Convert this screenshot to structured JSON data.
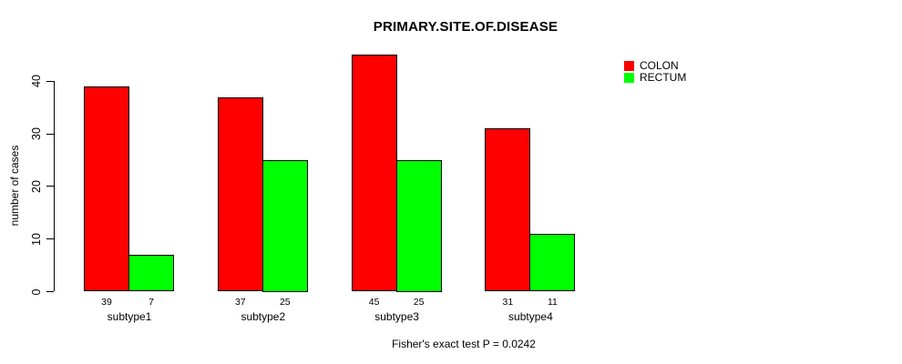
{
  "chart_data": {
    "type": "bar",
    "title": "PRIMARY.SITE.OF.DISEASE",
    "categories": [
      "subtype1",
      "subtype2",
      "subtype3",
      "subtype4"
    ],
    "series": [
      {
        "name": "COLON",
        "color": "#ff0000",
        "values": [
          39,
          37,
          45,
          31
        ]
      },
      {
        "name": "RECTUM",
        "color": "#00ff00",
        "values": [
          7,
          25,
          25,
          11
        ]
      }
    ],
    "bar_value_labels": [
      [
        39,
        7
      ],
      [
        37,
        25
      ],
      [
        45,
        25
      ],
      [
        31,
        11
      ]
    ],
    "xlabel": "",
    "ylabel": "number of cases",
    "yticks": [
      0,
      10,
      20,
      30,
      40
    ],
    "ylim": [
      0,
      45
    ],
    "grid": false,
    "legend_position": "top-right",
    "annotation": "Fisher's exact test P = 0.0242",
    "axis_color": "#000000",
    "background_color": "#ffffff"
  }
}
